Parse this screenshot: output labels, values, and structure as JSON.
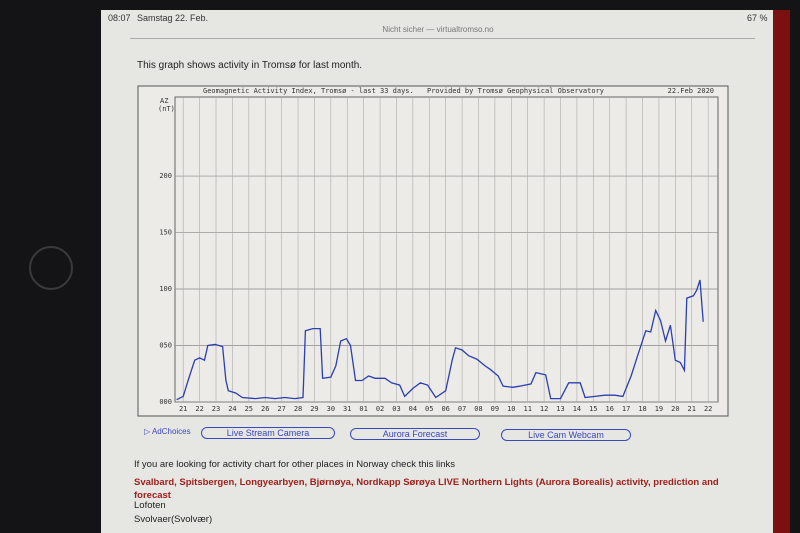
{
  "status_bar": {
    "time": "08:07",
    "date": "Samstag 22. Feb.",
    "battery": "67 %"
  },
  "address_bar": {
    "url": "Nicht sicher — virtualtromso.no"
  },
  "intro": "This graph shows activity in Tromsø for last month.",
  "chart_data": {
    "type": "line",
    "title": "Geomagnetic Activity Index, Tromsø - last 33 days.",
    "subtitle": "Provided by Tromsø Geophysical Observatory",
    "date": "22.Feb 2020",
    "y_label": "AZ",
    "y_unit": "(nT)",
    "color": "#2b3fb0",
    "grid": true,
    "xlim": [
      -0.5,
      32.6
    ],
    "ylim": [
      0,
      270
    ],
    "yticks": [
      {
        "value": 0,
        "label": "000"
      },
      {
        "value": 50,
        "label": "050"
      },
      {
        "value": 100,
        "label": "100"
      },
      {
        "value": 150,
        "label": "150"
      },
      {
        "value": 200,
        "label": "200"
      }
    ],
    "xticks": [
      {
        "value": 0,
        "label": "21"
      },
      {
        "value": 1,
        "label": "22"
      },
      {
        "value": 2,
        "label": "23"
      },
      {
        "value": 3,
        "label": "24"
      },
      {
        "value": 4,
        "label": "25"
      },
      {
        "value": 5,
        "label": "26"
      },
      {
        "value": 6,
        "label": "27"
      },
      {
        "value": 7,
        "label": "28"
      },
      {
        "value": 8,
        "label": "29"
      },
      {
        "value": 9,
        "label": "30"
      },
      {
        "value": 10,
        "label": "31"
      },
      {
        "value": 11,
        "label": "01"
      },
      {
        "value": 12,
        "label": "02"
      },
      {
        "value": 13,
        "label": "03"
      },
      {
        "value": 14,
        "label": "04"
      },
      {
        "value": 15,
        "label": "05"
      },
      {
        "value": 16,
        "label": "06"
      },
      {
        "value": 17,
        "label": "07"
      },
      {
        "value": 18,
        "label": "08"
      },
      {
        "value": 19,
        "label": "09"
      },
      {
        "value": 20,
        "label": "10"
      },
      {
        "value": 21,
        "label": "11"
      },
      {
        "value": 22,
        "label": "12"
      },
      {
        "value": 23,
        "label": "13"
      },
      {
        "value": 24,
        "label": "14"
      },
      {
        "value": 25,
        "label": "15"
      },
      {
        "value": 26,
        "label": "16"
      },
      {
        "value": 27,
        "label": "17"
      },
      {
        "value": 28,
        "label": "18"
      },
      {
        "value": 29,
        "label": "19"
      },
      {
        "value": 30,
        "label": "20"
      },
      {
        "value": 31,
        "label": "21"
      },
      {
        "value": 32,
        "label": "22"
      }
    ],
    "x": [
      -0.4,
      0,
      0.3,
      0.7,
      1.0,
      1.3,
      1.5,
      1.95,
      2.4,
      2.6,
      2.75,
      3.2,
      3.6,
      4.4,
      5.0,
      5.6,
      6.2,
      6.8,
      7.3,
      7.45,
      7.9,
      8.35,
      8.5,
      9.0,
      9.3,
      9.6,
      9.95,
      10.2,
      10.5,
      10.9,
      11.3,
      11.7,
      12.3,
      12.7,
      13.2,
      13.5,
      14.0,
      14.45,
      14.9,
      15.4,
      16.0,
      16.4,
      16.6,
      17.0,
      17.4,
      17.9,
      18.4,
      18.7,
      19.2,
      19.5,
      20.1,
      20.5,
      21.2,
      21.5,
      22.1,
      22.4,
      23.0,
      23.5,
      24.2,
      24.5,
      25.1,
      25.7,
      26.3,
      26.8,
      27.3,
      27.7,
      28.2,
      28.5,
      28.8,
      29.1,
      29.4,
      29.7,
      30.0,
      30.3,
      30.55,
      30.7,
      31.1,
      31.3,
      31.5,
      31.7
    ],
    "values": [
      2,
      5,
      19,
      37,
      39,
      37,
      50,
      51,
      49,
      19,
      10,
      8,
      4,
      3,
      4,
      3,
      4,
      3,
      4,
      63,
      65,
      65,
      21,
      22,
      32,
      54,
      56,
      50,
      19,
      19,
      23,
      21,
      21,
      17,
      15,
      5,
      12,
      17,
      15,
      4,
      10,
      37,
      48,
      46,
      41,
      38,
      32,
      29,
      23,
      14,
      13,
      14,
      16,
      26,
      24,
      3,
      3,
      17,
      17,
      4,
      5,
      6,
      6,
      5,
      23,
      41,
      63,
      62,
      81,
      72,
      54,
      68,
      37,
      35,
      28,
      92,
      94,
      99,
      108,
      71
    ]
  },
  "ad_choices": "AdChoices",
  "buttons": [
    "Live Stream Camera",
    "Aurora Forecast",
    "Live Cam Webcam"
  ],
  "links_text": "If you are looking for activity chart for other places in Norway check this links",
  "links": [
    "Svalbard, Spitsbergen, Longyearbyen, Bjørnøya, Nordkapp Sørøya LIVE Northern Lights (Aurora Borealis) activity, prediction and forecast",
    "Lofoten",
    "Svolvaer(Svolvær)"
  ]
}
